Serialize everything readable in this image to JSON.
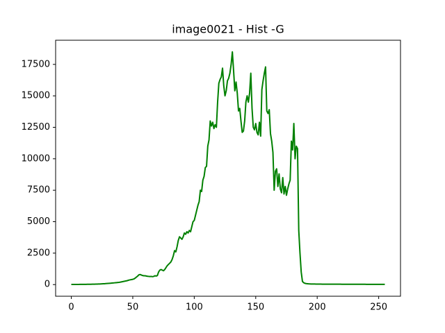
{
  "chart_data": {
    "type": "line",
    "title": "image0021 - Hist -G",
    "x": [
      0,
      1,
      2,
      3,
      4,
      5,
      6,
      7,
      8,
      9,
      10,
      11,
      12,
      13,
      14,
      15,
      16,
      17,
      18,
      19,
      20,
      21,
      22,
      23,
      24,
      25,
      26,
      27,
      28,
      29,
      30,
      31,
      32,
      33,
      34,
      35,
      36,
      37,
      38,
      39,
      40,
      41,
      42,
      43,
      44,
      45,
      46,
      47,
      48,
      49,
      50,
      51,
      52,
      53,
      54,
      55,
      56,
      57,
      58,
      59,
      60,
      61,
      62,
      63,
      64,
      65,
      66,
      67,
      68,
      69,
      70,
      71,
      72,
      73,
      74,
      75,
      76,
      77,
      78,
      79,
      80,
      81,
      82,
      83,
      84,
      85,
      86,
      87,
      88,
      89,
      90,
      91,
      92,
      93,
      94,
      95,
      96,
      97,
      98,
      99,
      100,
      101,
      102,
      103,
      104,
      105,
      106,
      107,
      108,
      109,
      110,
      111,
      112,
      113,
      114,
      115,
      116,
      117,
      118,
      119,
      120,
      121,
      122,
      123,
      124,
      125,
      126,
      127,
      128,
      129,
      130,
      131,
      132,
      133,
      134,
      135,
      136,
      137,
      138,
      139,
      140,
      141,
      142,
      143,
      144,
      145,
      146,
      147,
      148,
      149,
      150,
      151,
      152,
      153,
      154,
      155,
      156,
      157,
      158,
      159,
      160,
      161,
      162,
      163,
      164,
      165,
      166,
      167,
      168,
      169,
      170,
      171,
      172,
      173,
      174,
      175,
      176,
      177,
      178,
      179,
      180,
      181,
      182,
      183,
      184,
      185,
      186,
      187,
      188,
      189,
      190,
      191,
      192,
      193,
      194,
      195,
      196,
      197,
      198,
      199,
      200,
      201,
      202,
      203,
      204,
      205,
      206,
      207,
      208,
      209,
      210,
      211,
      212,
      213,
      214,
      215,
      216,
      217,
      218,
      219,
      220,
      221,
      222,
      223,
      224,
      225,
      226,
      227,
      228,
      229,
      230,
      231,
      232,
      233,
      234,
      235,
      236,
      237,
      238,
      239,
      240,
      241,
      242,
      243,
      244,
      245,
      246,
      247,
      248,
      249,
      250,
      251,
      252,
      253,
      254,
      255
    ],
    "series": [
      {
        "color": "#008000",
        "values": [
          10,
          10,
          12,
          12,
          14,
          14,
          15,
          16,
          17,
          18,
          20,
          20,
          22,
          24,
          25,
          27,
          28,
          30,
          32,
          35,
          38,
          42,
          45,
          50,
          55,
          60,
          65,
          70,
          78,
          85,
          92,
          100,
          110,
          120,
          130,
          140,
          150,
          160,
          170,
          180,
          200,
          220,
          240,
          260,
          280,
          300,
          330,
          360,
          380,
          400,
          420,
          450,
          520,
          600,
          680,
          780,
          800,
          760,
          720,
          700,
          700,
          680,
          660,
          650,
          640,
          650,
          630,
          650,
          700,
          680,
          720,
          1000,
          1150,
          1200,
          1150,
          1100,
          1200,
          1350,
          1500,
          1600,
          1700,
          1800,
          2000,
          2300,
          2700,
          2600,
          3000,
          3500,
          3800,
          3700,
          3600,
          3800,
          4100,
          4000,
          4200,
          4100,
          4300,
          4200,
          4600,
          5000,
          5100,
          5500,
          5900,
          6300,
          6600,
          7500,
          7400,
          8300,
          8600,
          9300,
          9400,
          11000,
          11500,
          13000,
          12600,
          12900,
          12400,
          12700,
          12500,
          14500,
          16000,
          16300,
          16500,
          17200,
          15800,
          15000,
          15400,
          16200,
          16400,
          16800,
          17500,
          18494,
          17000,
          15400,
          16100,
          15200,
          13800,
          14000,
          13000,
          12100,
          12200,
          13000,
          14500,
          15000,
          14500,
          15200,
          16800,
          14000,
          12500,
          12300,
          12800,
          12100,
          11900,
          12900,
          11800,
          15500,
          16200,
          16800,
          17300,
          13800,
          13600,
          13900,
          12000,
          11400,
          10500,
          7500,
          9000,
          9200,
          7800,
          8800,
          7600,
          7300,
          8500,
          7200,
          7800,
          7100,
          7600,
          8000,
          8300,
          11400,
          10700,
          12800,
          10000,
          11000,
          10800,
          4300,
          2500,
          1000,
          250,
          150,
          100,
          80,
          70,
          60,
          55,
          50,
          50,
          45,
          45,
          40,
          40,
          40,
          38,
          38,
          36,
          36,
          35,
          35,
          34,
          34,
          33,
          33,
          32,
          32,
          31,
          31,
          30,
          30,
          30,
          30,
          29,
          29,
          28,
          28,
          28,
          27,
          27,
          27,
          26,
          26,
          26,
          25,
          25,
          25,
          24,
          24,
          24,
          23,
          23,
          23,
          22,
          22,
          22,
          21,
          21,
          21,
          20,
          20,
          20,
          20,
          20,
          19,
          19,
          18,
          18,
          18
        ]
      }
    ],
    "xlim": [
      -12.75,
      267.75
    ],
    "xticks": [
      0,
      50,
      100,
      150,
      200,
      250
    ],
    "ylim": [
      -925,
      19419
    ],
    "yticks": [
      0,
      2500,
      5000,
      7500,
      10000,
      12500,
      15000,
      17500
    ]
  }
}
